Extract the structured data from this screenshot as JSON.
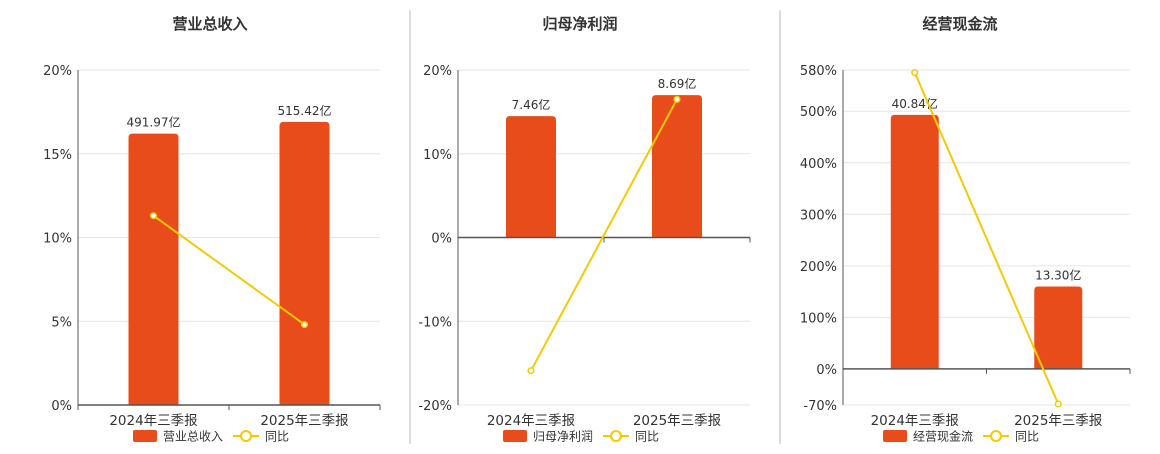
{
  "colors": {
    "bar": "#e84c1a",
    "line": "#f2cb05",
    "grid": "#e6e6e6",
    "axis": "#555555",
    "text": "#333333",
    "divider": "#bbbbbb"
  },
  "chart_data": [
    {
      "type": "bar",
      "title": "营业总收入",
      "categories": [
        "2024年三季报",
        "2025年三季报"
      ],
      "bar_labels": [
        "491.97亿",
        "515.42亿"
      ],
      "y_ticks": [
        "20%",
        "15%",
        "10%",
        "5%",
        "0%"
      ],
      "y_tick_values": [
        20,
        15,
        10,
        5,
        0
      ],
      "ylim": [
        0,
        20
      ],
      "series": [
        {
          "name": "营业总收入",
          "kind": "bar",
          "values": [
            16.2,
            16.9
          ]
        },
        {
          "name": "同比",
          "kind": "line",
          "values": [
            11.3,
            4.8
          ]
        }
      ],
      "legend": [
        "营业总收入",
        "同比"
      ],
      "legend_position": "bottom"
    },
    {
      "type": "bar",
      "title": "归母净利润",
      "categories": [
        "2024年三季报",
        "2025年三季报"
      ],
      "bar_labels": [
        "7.46亿",
        "8.69亿"
      ],
      "y_ticks": [
        "20%",
        "10%",
        "0%",
        "-10%",
        "-20%"
      ],
      "y_tick_values": [
        20,
        10,
        0,
        -10,
        -20
      ],
      "ylim": [
        -20,
        20
      ],
      "series": [
        {
          "name": "归母净利润",
          "kind": "bar",
          "values": [
            14.5,
            17.0
          ]
        },
        {
          "name": "同比",
          "kind": "line",
          "values": [
            -15.9,
            16.5
          ]
        }
      ],
      "legend": [
        "归母净利润",
        "同比"
      ],
      "legend_position": "bottom"
    },
    {
      "type": "bar",
      "title": "经营现金流",
      "categories": [
        "2024年三季报",
        "2025年三季报"
      ],
      "bar_labels": [
        "40.84亿",
        "13.30亿"
      ],
      "y_ticks": [
        "580%",
        "500%",
        "400%",
        "300%",
        "200%",
        "100%",
        "0%",
        "-70%"
      ],
      "y_tick_values": [
        580,
        500,
        400,
        300,
        200,
        100,
        0,
        -70
      ],
      "ylim": [
        -70,
        580
      ],
      "series": [
        {
          "name": "经营现金流",
          "kind": "bar",
          "values": [
            493,
            160
          ]
        },
        {
          "name": "同比",
          "kind": "line",
          "values": [
            575,
            -68
          ]
        }
      ],
      "legend": [
        "经营现金流",
        "同比"
      ],
      "legend_position": "bottom"
    }
  ]
}
